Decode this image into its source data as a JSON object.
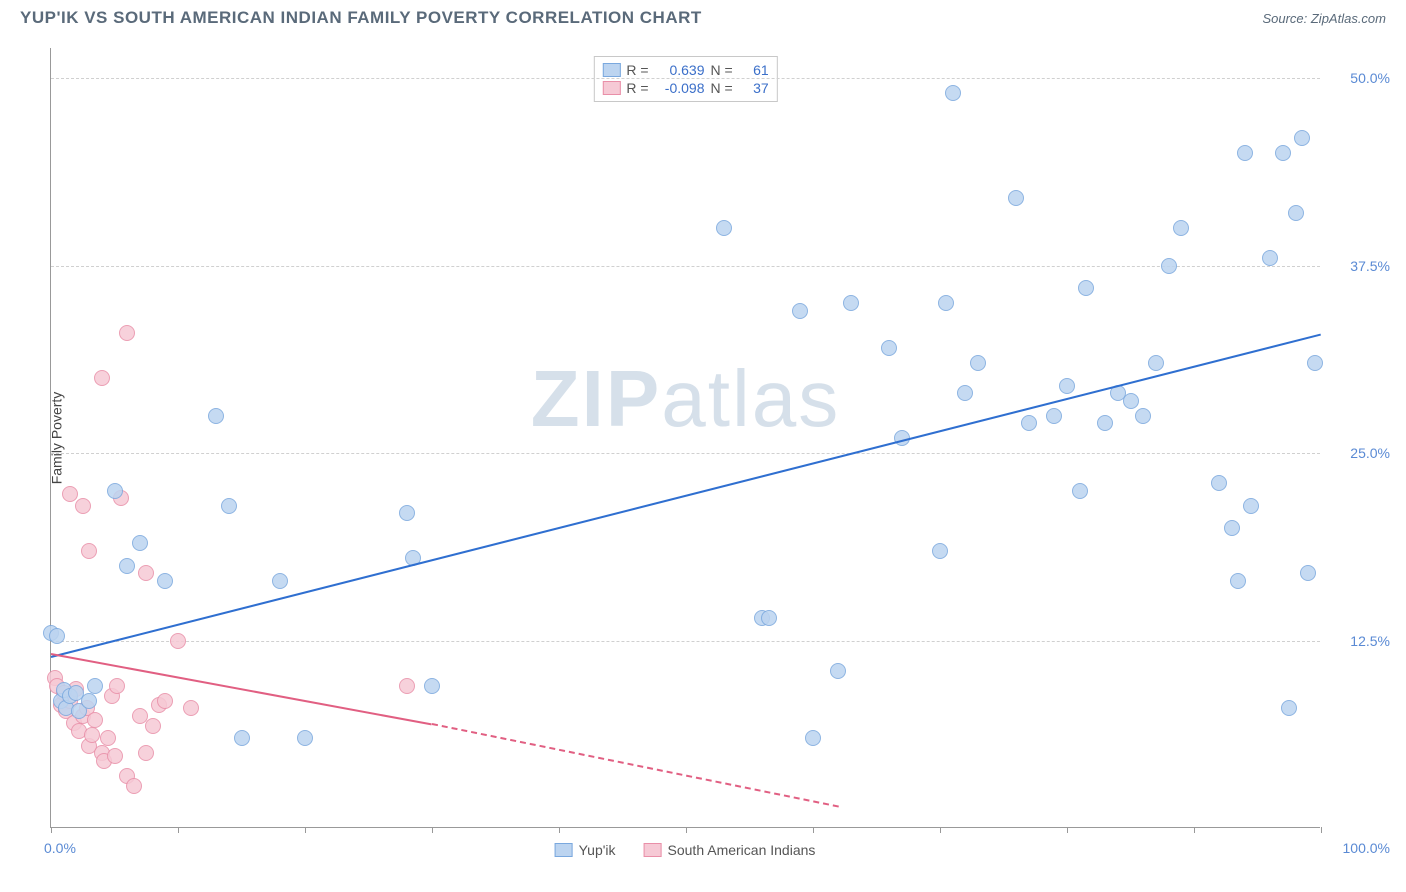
{
  "header": {
    "title": "YUP'IK VS SOUTH AMERICAN INDIAN FAMILY POVERTY CORRELATION CHART",
    "source_prefix": "Source: ",
    "source_name": "ZipAtlas.com"
  },
  "axis": {
    "ylabel": "Family Poverty",
    "y_ticks": [
      {
        "v": 12.5,
        "label": "12.5%"
      },
      {
        "v": 25.0,
        "label": "25.0%"
      },
      {
        "v": 37.5,
        "label": "37.5%"
      },
      {
        "v": 50.0,
        "label": "50.0%"
      }
    ],
    "x_min_label": "0.0%",
    "x_max_label": "100.0%",
    "x_tick_positions": [
      0,
      10,
      20,
      30,
      40,
      50,
      60,
      70,
      80,
      90,
      100
    ],
    "xlim": [
      0,
      100
    ],
    "ylim": [
      0,
      52
    ]
  },
  "watermark": {
    "zip": "ZIP",
    "atlas": "atlas"
  },
  "series": {
    "yupik": {
      "name": "Yup'ik",
      "fill": "#bcd4f0",
      "stroke": "#7aa8de",
      "line_color": "#2f6fd0",
      "marker_r": 8,
      "R": "0.639",
      "N": "61",
      "trend": {
        "x1": 0,
        "y1": 11.5,
        "x2": 100,
        "y2": 33.0,
        "dashed": false
      },
      "points": [
        [
          0,
          13
        ],
        [
          0.5,
          12.8
        ],
        [
          0.8,
          8.5
        ],
        [
          1,
          9.2
        ],
        [
          1.2,
          8.0
        ],
        [
          1.5,
          8.8
        ],
        [
          2,
          9
        ],
        [
          2.2,
          7.8
        ],
        [
          3,
          8.5
        ],
        [
          3.5,
          9.5
        ],
        [
          5,
          22.5
        ],
        [
          6,
          17.5
        ],
        [
          7,
          19
        ],
        [
          9,
          16.5
        ],
        [
          13,
          27.5
        ],
        [
          14,
          21.5
        ],
        [
          15,
          6
        ],
        [
          18,
          16.5
        ],
        [
          20,
          6
        ],
        [
          28,
          21
        ],
        [
          28.5,
          18
        ],
        [
          30,
          9.5
        ],
        [
          53,
          40
        ],
        [
          56,
          14
        ],
        [
          56.5,
          14
        ],
        [
          59,
          34.5
        ],
        [
          60,
          6
        ],
        [
          62,
          10.5
        ],
        [
          63,
          35
        ],
        [
          66,
          32
        ],
        [
          67,
          26
        ],
        [
          70,
          18.5
        ],
        [
          70.5,
          35
        ],
        [
          71,
          49
        ],
        [
          72,
          29
        ],
        [
          73,
          31
        ],
        [
          76,
          42
        ],
        [
          77,
          27
        ],
        [
          79,
          27.5
        ],
        [
          80,
          29.5
        ],
        [
          81,
          22.5
        ],
        [
          81.5,
          36
        ],
        [
          83,
          27
        ],
        [
          84,
          29
        ],
        [
          87,
          31
        ],
        [
          88,
          37.5
        ],
        [
          89,
          40
        ],
        [
          92,
          23
        ],
        [
          93,
          20
        ],
        [
          93.5,
          16.5
        ],
        [
          94,
          45
        ],
        [
          94.5,
          21.5
        ],
        [
          96,
          38
        ],
        [
          97,
          45
        ],
        [
          97.5,
          8
        ],
        [
          98,
          41
        ],
        [
          98.5,
          46
        ],
        [
          99,
          17
        ],
        [
          99.5,
          31
        ],
        [
          86,
          27.5
        ],
        [
          85,
          28.5
        ]
      ]
    },
    "sai": {
      "name": "South American Indians",
      "fill": "#f6c9d5",
      "stroke": "#e98fa8",
      "line_color": "#e15f82",
      "marker_r": 8,
      "R": "-0.098",
      "N": "37",
      "trend_solid": {
        "x1": 0,
        "y1": 11.7,
        "x2": 30,
        "y2": 7.0
      },
      "trend_dashed": {
        "x1": 30,
        "y1": 7.0,
        "x2": 62,
        "y2": 1.5
      },
      "points": [
        [
          0.3,
          10
        ],
        [
          0.5,
          9.5
        ],
        [
          0.8,
          8.2
        ],
        [
          1,
          9
        ],
        [
          1.2,
          7.8
        ],
        [
          1.5,
          8.5
        ],
        [
          1.8,
          7
        ],
        [
          2,
          9.3
        ],
        [
          2.2,
          6.5
        ],
        [
          2.5,
          7.5
        ],
        [
          2.8,
          8
        ],
        [
          3,
          5.5
        ],
        [
          3.2,
          6.2
        ],
        [
          3.5,
          7.2
        ],
        [
          4,
          5
        ],
        [
          4.2,
          4.5
        ],
        [
          4.5,
          6
        ],
        [
          5,
          4.8
        ],
        [
          5.5,
          22
        ],
        [
          6,
          3.5
        ],
        [
          6.5,
          2.8
        ],
        [
          7,
          7.5
        ],
        [
          7.5,
          17
        ],
        [
          8,
          6.8
        ],
        [
          8.5,
          8.2
        ],
        [
          1.5,
          22.3
        ],
        [
          2.5,
          21.5
        ],
        [
          3,
          18.5
        ],
        [
          6,
          33
        ],
        [
          4,
          30
        ],
        [
          9,
          8.5
        ],
        [
          10,
          12.5
        ],
        [
          11,
          8
        ],
        [
          4.8,
          8.8
        ],
        [
          5.2,
          9.5
        ],
        [
          28,
          9.5
        ],
        [
          7.5,
          5
        ]
      ]
    }
  },
  "legend_labels": {
    "R": "R =",
    "N": "N ="
  }
}
